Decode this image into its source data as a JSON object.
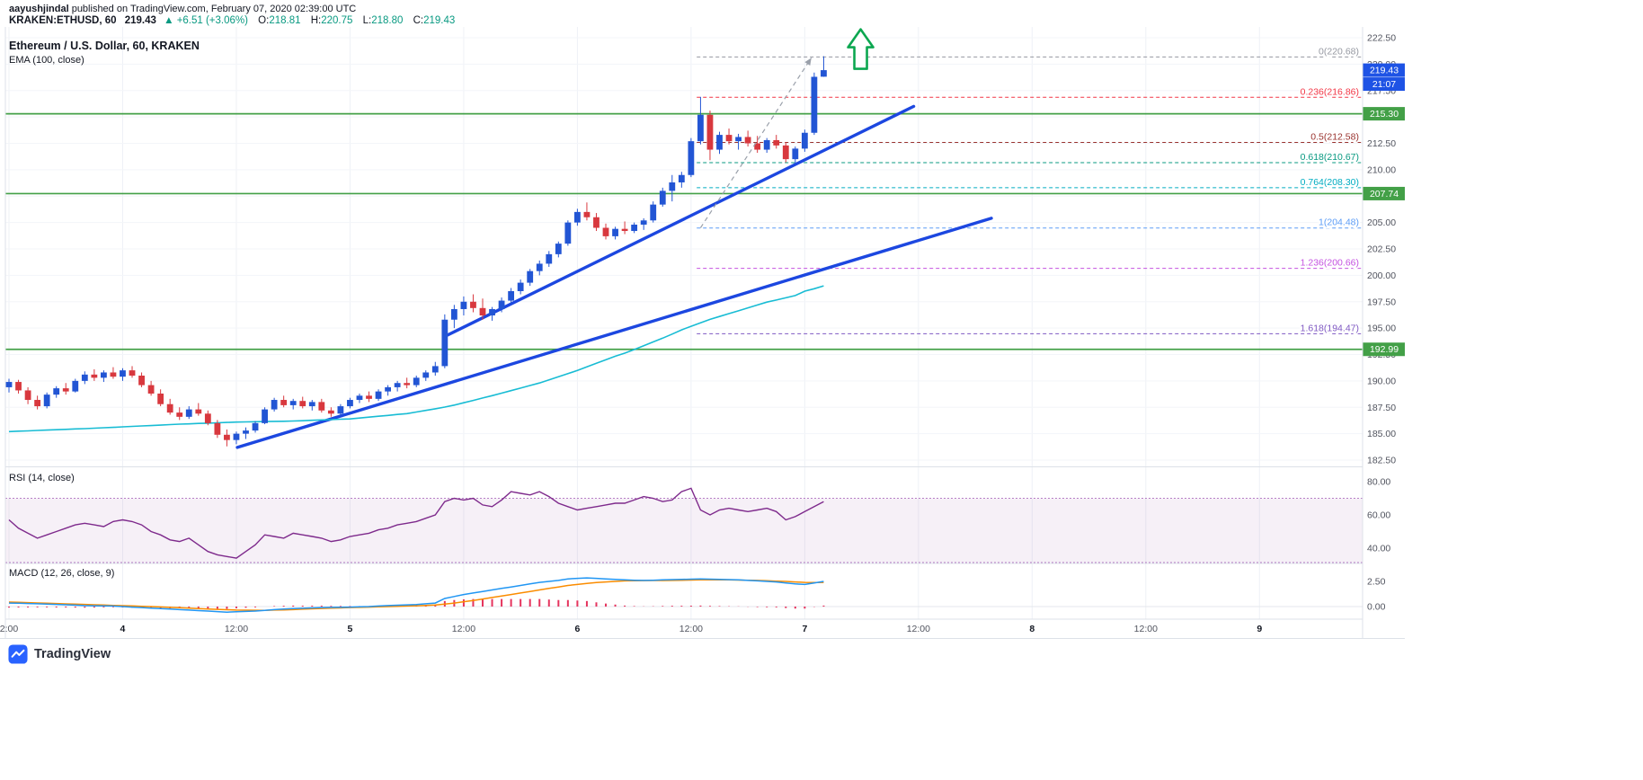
{
  "header": {
    "byline_author": "aayushjindal",
    "byline_rest": " published on TradingView.com, February 07, 2020 02:39:00 UTC",
    "symbol": "KRAKEN:ETHUSD",
    "interval": ", 60",
    "last_price": "219.43",
    "change_arrow": "▲",
    "change": "+6.51 (+3.06%)",
    "ohlc": [
      {
        "label": "O:",
        "value": "218.81"
      },
      {
        "label": "H:",
        "value": "220.75"
      },
      {
        "label": "L:",
        "value": "218.80"
      },
      {
        "label": "C:",
        "value": "219.43"
      }
    ]
  },
  "main_pane": {
    "title": "Ethereum / U.S. Dollar, 60, KRAKEN",
    "indicator": "EMA (100, close)"
  },
  "rsi_pane": {
    "title": "RSI (14, close)"
  },
  "macd_pane": {
    "title": "MACD (12, 26, close, 9)"
  },
  "footer": {
    "brand": "TradingView"
  },
  "chart_data": {
    "type": "candlestick",
    "symbol": "KRAKEN:ETHUSD",
    "interval_minutes": 60,
    "price_axis": {
      "min": 182.5,
      "max": 222.5,
      "ticks": [
        222.5,
        220.0,
        217.5,
        215.0,
        212.5,
        210.0,
        207.5,
        205.0,
        202.5,
        200.0,
        197.5,
        195.0,
        192.5,
        190.0,
        187.5,
        185.0,
        182.5
      ]
    },
    "time_axis": [
      {
        "label": "2:00",
        "i": 0
      },
      {
        "label": "4",
        "i": 12,
        "major": true
      },
      {
        "label": "12:00",
        "i": 24
      },
      {
        "label": "5",
        "i": 36,
        "major": true
      },
      {
        "label": "12:00",
        "i": 48
      },
      {
        "label": "6",
        "i": 60,
        "major": true
      },
      {
        "label": "12:00",
        "i": 72
      },
      {
        "label": "7",
        "i": 84,
        "major": true
      },
      {
        "label": "12:00",
        "i": 96
      },
      {
        "label": "8",
        "i": 108,
        "major": true
      },
      {
        "label": "12:00",
        "i": 120
      },
      {
        "label": "9",
        "i": 132,
        "major": true
      }
    ],
    "candles": [
      [
        189.4,
        190.2,
        188.9,
        189.9
      ],
      [
        189.9,
        190.1,
        188.8,
        189.1
      ],
      [
        189.1,
        189.4,
        187.8,
        188.2
      ],
      [
        188.2,
        188.6,
        187.3,
        187.6
      ],
      [
        187.6,
        188.9,
        187.4,
        188.7
      ],
      [
        188.7,
        189.5,
        188.4,
        189.3
      ],
      [
        189.3,
        189.8,
        188.7,
        189.0
      ],
      [
        189.0,
        190.2,
        188.9,
        190.0
      ],
      [
        190.0,
        190.9,
        189.7,
        190.6
      ],
      [
        190.6,
        191.1,
        190.0,
        190.3
      ],
      [
        190.3,
        191.0,
        189.9,
        190.8
      ],
      [
        190.8,
        191.3,
        190.2,
        190.4
      ],
      [
        190.4,
        191.2,
        190.0,
        191.0
      ],
      [
        191.0,
        191.4,
        190.3,
        190.5
      ],
      [
        190.5,
        190.8,
        189.4,
        189.6
      ],
      [
        189.6,
        190.0,
        188.6,
        188.8
      ],
      [
        188.8,
        189.2,
        187.6,
        187.8
      ],
      [
        187.8,
        188.3,
        186.8,
        187.0
      ],
      [
        187.0,
        187.5,
        186.3,
        186.6
      ],
      [
        186.6,
        187.6,
        186.4,
        187.3
      ],
      [
        187.3,
        187.9,
        186.7,
        186.9
      ],
      [
        186.9,
        187.2,
        185.8,
        186.0
      ],
      [
        186.0,
        186.3,
        184.6,
        184.9
      ],
      [
        184.9,
        185.4,
        183.8,
        184.4
      ],
      [
        184.4,
        185.2,
        184.0,
        185.0
      ],
      [
        185.0,
        185.6,
        184.5,
        185.3
      ],
      [
        185.3,
        186.2,
        185.1,
        186.0
      ],
      [
        186.0,
        187.5,
        185.9,
        187.3
      ],
      [
        187.3,
        188.4,
        187.1,
        188.2
      ],
      [
        188.2,
        188.6,
        187.5,
        187.7
      ],
      [
        187.7,
        188.3,
        187.3,
        188.1
      ],
      [
        188.1,
        188.5,
        187.4,
        187.6
      ],
      [
        187.6,
        188.2,
        187.2,
        188.0
      ],
      [
        188.0,
        188.3,
        187.0,
        187.2
      ],
      [
        187.2,
        187.5,
        186.6,
        186.9
      ],
      [
        186.9,
        187.8,
        186.7,
        187.6
      ],
      [
        187.6,
        188.4,
        187.4,
        188.2
      ],
      [
        188.2,
        188.8,
        187.9,
        188.6
      ],
      [
        188.6,
        189.0,
        188.0,
        188.3
      ],
      [
        188.3,
        189.2,
        188.1,
        189.0
      ],
      [
        189.0,
        189.6,
        188.6,
        189.4
      ],
      [
        189.4,
        190.0,
        189.0,
        189.8
      ],
      [
        189.8,
        190.3,
        189.3,
        189.6
      ],
      [
        189.6,
        190.5,
        189.4,
        190.3
      ],
      [
        190.3,
        191.0,
        190.0,
        190.8
      ],
      [
        190.8,
        191.8,
        190.5,
        191.4
      ],
      [
        191.4,
        196.3,
        191.2,
        195.8
      ],
      [
        195.8,
        197.2,
        195.0,
        196.8
      ],
      [
        196.8,
        198.0,
        196.2,
        197.5
      ],
      [
        197.5,
        198.2,
        196.5,
        196.9
      ],
      [
        196.9,
        197.8,
        195.8,
        196.2
      ],
      [
        196.2,
        197.0,
        195.7,
        196.8
      ],
      [
        196.8,
        197.9,
        196.5,
        197.6
      ],
      [
        197.6,
        198.8,
        197.3,
        198.5
      ],
      [
        198.5,
        199.6,
        198.2,
        199.3
      ],
      [
        199.3,
        200.6,
        199.0,
        200.4
      ],
      [
        200.4,
        201.4,
        200.0,
        201.1
      ],
      [
        201.1,
        202.3,
        200.8,
        202.0
      ],
      [
        202.0,
        203.2,
        201.7,
        203.0
      ],
      [
        203.0,
        205.2,
        202.8,
        205.0
      ],
      [
        205.0,
        206.3,
        204.7,
        206.0
      ],
      [
        206.0,
        206.9,
        205.2,
        205.5
      ],
      [
        205.5,
        205.9,
        204.2,
        204.5
      ],
      [
        204.5,
        204.9,
        203.4,
        203.7
      ],
      [
        203.7,
        204.6,
        203.4,
        204.4
      ],
      [
        204.4,
        205.1,
        203.9,
        204.2
      ],
      [
        204.2,
        205.0,
        204.0,
        204.8
      ],
      [
        204.8,
        205.4,
        204.3,
        205.2
      ],
      [
        205.2,
        207.0,
        205.0,
        206.7
      ],
      [
        206.7,
        208.3,
        206.5,
        208.0
      ],
      [
        208.0,
        209.5,
        207.0,
        208.8
      ],
      [
        208.8,
        209.8,
        208.3,
        209.5
      ],
      [
        209.5,
        213.0,
        209.3,
        212.7
      ],
      [
        212.7,
        216.9,
        212.4,
        215.2
      ],
      [
        215.2,
        215.6,
        210.9,
        211.9
      ],
      [
        211.9,
        213.6,
        211.5,
        213.3
      ],
      [
        213.3,
        213.9,
        212.4,
        212.7
      ],
      [
        212.7,
        213.4,
        211.9,
        213.1
      ],
      [
        213.1,
        213.7,
        212.2,
        212.5
      ],
      [
        212.5,
        213.2,
        211.6,
        211.9
      ],
      [
        211.9,
        213.0,
        211.6,
        212.8
      ],
      [
        212.8,
        213.3,
        212.0,
        212.3
      ],
      [
        212.3,
        212.6,
        210.7,
        211.0
      ],
      [
        211.0,
        212.2,
        210.6,
        212.0
      ],
      [
        212.0,
        213.8,
        211.7,
        213.5
      ],
      [
        213.5,
        219.2,
        213.3,
        218.8
      ],
      [
        218.81,
        220.75,
        218.8,
        219.43
      ]
    ],
    "ema_100": [
      185.2,
      185.24,
      185.27,
      185.31,
      185.34,
      185.38,
      185.41,
      185.45,
      185.48,
      185.52,
      185.56,
      185.6,
      185.65,
      185.69,
      185.73,
      185.77,
      185.81,
      185.86,
      185.9,
      185.93,
      185.97,
      186.0,
      186.03,
      186.07,
      186.1,
      186.12,
      186.13,
      186.15,
      186.17,
      186.18,
      186.2,
      186.23,
      186.27,
      186.3,
      186.33,
      186.37,
      186.4,
      186.48,
      186.57,
      186.65,
      186.73,
      186.82,
      186.9,
      187.05,
      187.21,
      187.36,
      187.52,
      187.71,
      187.93,
      188.15,
      188.38,
      188.6,
      188.84,
      189.08,
      189.32,
      189.56,
      189.8,
      190.1,
      190.4,
      190.69,
      190.99,
      191.33,
      191.67,
      192.0,
      192.34,
      192.63,
      192.97,
      193.33,
      193.69,
      194.05,
      194.43,
      194.83,
      195.17,
      195.5,
      195.83,
      196.1,
      196.37,
      196.64,
      196.92,
      197.19,
      197.46,
      197.66,
      197.87,
      198.08,
      198.5,
      198.73,
      199.0
    ],
    "trend_lines": [
      {
        "i1": 46.2,
        "p1": 194.3,
        "i2": 95.5,
        "p2": 216.0
      },
      {
        "i1": 24.1,
        "p1": 183.7,
        "i2": 103.7,
        "p2": 205.4
      }
    ],
    "projection": {
      "i1": 73.0,
      "p1": 204.5,
      "i2": 84.7,
      "p2": 220.6
    },
    "arrow": {
      "i": 89.9,
      "tip_price": 223.3
    },
    "fib_start_i": 72.6,
    "fib_levels": [
      {
        "level": "0",
        "price": 220.68,
        "label": "0(220.68)",
        "color": "#9598A1"
      },
      {
        "level": "0.236",
        "price": 216.86,
        "label": "0.236(216.86)",
        "color": "#F23645"
      },
      {
        "level": "0.5",
        "price": 212.58,
        "label": "0.5(212.58)",
        "color": "#99322E"
      },
      {
        "level": "0.618",
        "price": 210.67,
        "label": "0.618(210.67)",
        "color": "#089981"
      },
      {
        "level": "0.764",
        "price": 208.3,
        "label": "0.764(208.30)",
        "color": "#00ACC1"
      },
      {
        "level": "1",
        "price": 204.48,
        "label": "1(204.48)",
        "color": "#5B9CF6"
      },
      {
        "level": "1.236",
        "price": 200.66,
        "label": "1.236(200.66)",
        "color": "#C452E0"
      },
      {
        "level": "1.618",
        "price": 194.47,
        "label": "1.618(194.47)",
        "color": "#7E57C2"
      }
    ],
    "support_levels": [
      {
        "price": 215.3,
        "label": "215.30"
      },
      {
        "price": 207.74,
        "label": "207.74"
      },
      {
        "price": 192.99,
        "label": "192.99"
      }
    ],
    "badges": [
      {
        "text": "219.43",
        "price": 219.43,
        "kind": "last"
      },
      {
        "text": "21:07",
        "kind": "countdown"
      },
      {
        "text": "215.30",
        "price": 215.3,
        "kind": "support"
      },
      {
        "text": "207.74",
        "price": 207.74,
        "kind": "support"
      },
      {
        "text": "192.99",
        "price": 192.99,
        "kind": "support"
      }
    ],
    "rsi": {
      "band": [
        70,
        30
      ],
      "ticks": [
        80,
        60,
        40
      ],
      "values": [
        57,
        52,
        49,
        46,
        48,
        50,
        52,
        54,
        55,
        54,
        53,
        56,
        57,
        56,
        54,
        50,
        48,
        45,
        44,
        46,
        42,
        38,
        36,
        35,
        34,
        38,
        42,
        48,
        47,
        46,
        49,
        48,
        47,
        46,
        44,
        45,
        47,
        48,
        49,
        51,
        52,
        54,
        55,
        56,
        58,
        60,
        68,
        70,
        69,
        70,
        66,
        65,
        69,
        74,
        73,
        72,
        74,
        71,
        67,
        65,
        63,
        64,
        65,
        66,
        67,
        67,
        69,
        71,
        70,
        68,
        69,
        74,
        76,
        63,
        60,
        63,
        64,
        63,
        62,
        63,
        64,
        62,
        57,
        59,
        62,
        65,
        68
      ]
    },
    "macd": {
      "ticks": [
        2.5,
        0
      ],
      "macd": [
        0.35,
        0.33,
        0.3,
        0.28,
        0.25,
        0.21,
        0.18,
        0.14,
        0.1,
        0.08,
        0.07,
        0.05,
        0.0,
        -0.05,
        -0.1,
        -0.15,
        -0.2,
        -0.25,
        -0.3,
        -0.35,
        -0.4,
        -0.45,
        -0.5,
        -0.55,
        -0.52,
        -0.48,
        -0.45,
        -0.38,
        -0.3,
        -0.25,
        -0.2,
        -0.17,
        -0.13,
        -0.1,
        -0.08,
        -0.07,
        -0.05,
        -0.03,
        0.0,
        0.05,
        0.1,
        0.13,
        0.17,
        0.2,
        0.28,
        0.35,
        0.8,
        1.0,
        1.2,
        1.35,
        1.5,
        1.65,
        1.8,
        1.95,
        2.1,
        2.25,
        2.4,
        2.5,
        2.6,
        2.75,
        2.8,
        2.85,
        2.8,
        2.75,
        2.7,
        2.65,
        2.62,
        2.6,
        2.62,
        2.65,
        2.68,
        2.7,
        2.72,
        2.75,
        2.72,
        2.7,
        2.68,
        2.65,
        2.6,
        2.55,
        2.5,
        2.45,
        2.35,
        2.25,
        2.2,
        2.35,
        2.5
      ],
      "signal": [
        0.45,
        0.42,
        0.39,
        0.36,
        0.33,
        0.3,
        0.27,
        0.24,
        0.21,
        0.18,
        0.15,
        0.12,
        0.09,
        0.06,
        0.03,
        0.0,
        -0.04,
        -0.08,
        -0.12,
        -0.16,
        -0.2,
        -0.24,
        -0.28,
        -0.31,
        -0.35,
        -0.36,
        -0.37,
        -0.38,
        -0.35,
        -0.33,
        -0.3,
        -0.26,
        -0.22,
        -0.19,
        -0.15,
        -0.13,
        -0.1,
        -0.08,
        -0.05,
        -0.03,
        0.0,
        0.03,
        0.05,
        0.08,
        0.12,
        0.15,
        0.25,
        0.35,
        0.48,
        0.6,
        0.75,
        0.9,
        1.05,
        1.2,
        1.35,
        1.5,
        1.65,
        1.8,
        1.95,
        2.1,
        2.2,
        2.3,
        2.38,
        2.45,
        2.5,
        2.55,
        2.57,
        2.58,
        2.59,
        2.59,
        2.6,
        2.62,
        2.63,
        2.65,
        2.65,
        2.65,
        2.65,
        2.63,
        2.62,
        2.6,
        2.57,
        2.53,
        2.5,
        2.45,
        2.4,
        2.38,
        2.4
      ]
    },
    "colors": {
      "up": "#2255D4",
      "down": "#D8383E",
      "ema": "#18BCD4",
      "trend": "#1C47E0",
      "support": "#43A047",
      "projection": "#9AA0AA",
      "arrow": "#0CA750",
      "rsi": "#7E2A8C",
      "rsi_band_line": "#B77FC6",
      "rsi_band_fill": "rgba(126,42,140,0.07)",
      "macd": "#2196F3",
      "signal": "#FB8C00",
      "hist": "#E5345E",
      "badge_last": "#1E53E5",
      "badge_support": "#43A047"
    }
  }
}
